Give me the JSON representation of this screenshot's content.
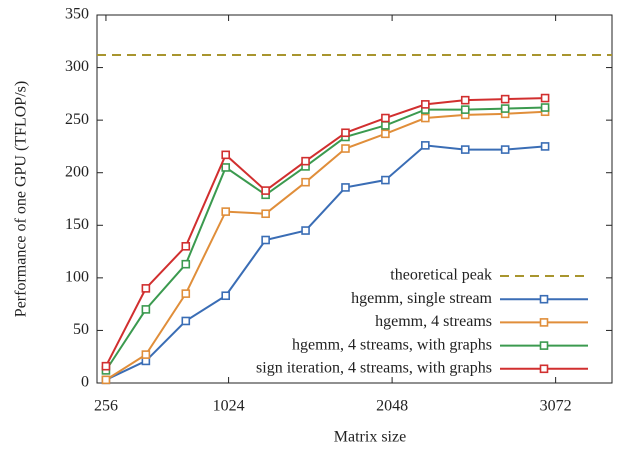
{
  "chart_data": {
    "type": "line",
    "xlabel": "Matrix size",
    "ylabel": "Performance of one GPU (TFLOP/s)",
    "x": [
      256,
      506,
      756,
      1006,
      1256,
      1506,
      1756,
      2006,
      2256,
      2506,
      2756,
      3006
    ],
    "series": [
      {
        "name": "hgemm, single stream",
        "color": "#3a6db5",
        "values": [
          3,
          21,
          59,
          83,
          136,
          145,
          186,
          193,
          226,
          222,
          222,
          225
        ]
      },
      {
        "name": "hgemm, 4 streams",
        "color": "#e08e3a",
        "values": [
          3,
          27,
          85,
          163,
          161,
          191,
          223,
          237,
          252,
          255,
          256,
          258
        ]
      },
      {
        "name": "hgemm, 4 streams, with graphs",
        "color": "#3b9a4f",
        "values": [
          12,
          70,
          113,
          205,
          179,
          206,
          234,
          245,
          260,
          260,
          261,
          262
        ]
      },
      {
        "name": "sign iteration, 4 streams, with graphs",
        "color": "#d12f2f",
        "values": [
          16,
          90,
          130,
          217,
          183,
          211,
          238,
          252,
          265,
          269,
          270,
          271
        ]
      }
    ],
    "reference_lines": [
      {
        "name": "theoretical peak",
        "value": 312,
        "color": "#a8952e"
      }
    ],
    "xlim": [
      200,
      3425
    ],
    "ylim": [
      0,
      350
    ],
    "xticks": [
      256,
      1024,
      2048,
      3072
    ],
    "yticks": [
      0,
      50,
      100,
      150,
      200,
      250,
      300,
      350
    ],
    "legend": "lower right"
  }
}
